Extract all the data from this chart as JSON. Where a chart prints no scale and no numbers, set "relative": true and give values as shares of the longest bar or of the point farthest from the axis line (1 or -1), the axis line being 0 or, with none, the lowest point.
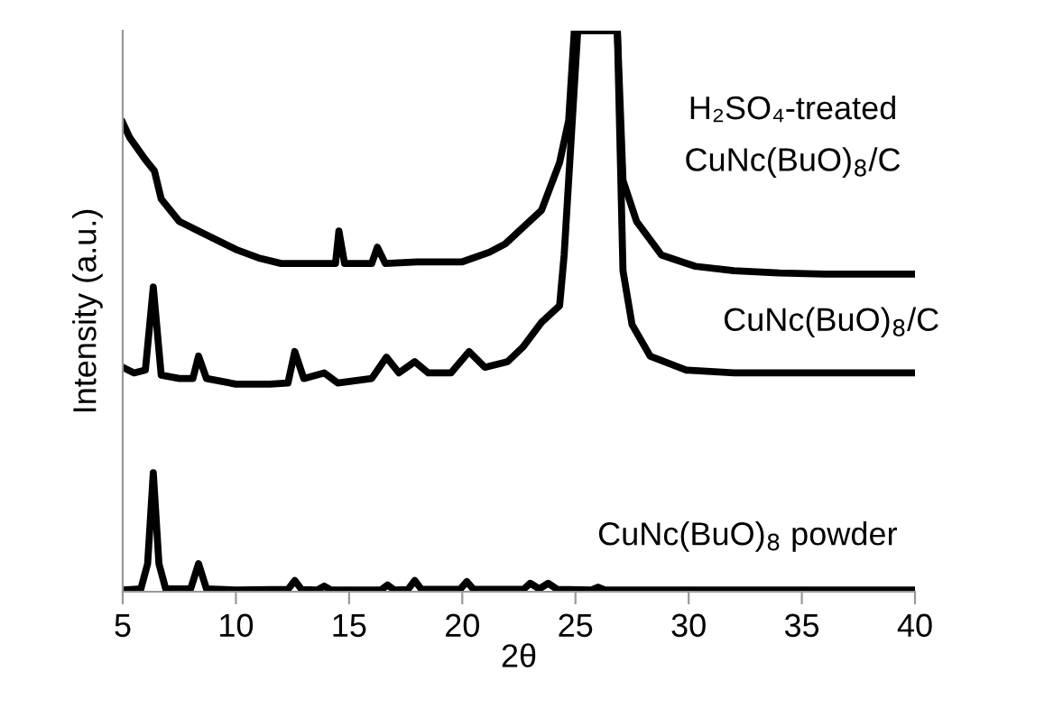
{
  "chart_data": {
    "type": "line",
    "relative": true,
    "xlabel": "2θ",
    "ylabel": "Intensity (a.u.)",
    "xlim": [
      5,
      40
    ],
    "xticks": [
      5,
      10,
      15,
      20,
      25,
      30,
      35,
      40
    ],
    "tick_labels": "x",
    "grid": false,
    "legend": false,
    "marker": "none",
    "line_style": "solid",
    "series": [
      {
        "name": "H₂SO₄-treated\nCuNc(BuO)$_{8}$/C",
        "color": "#000000",
        "x": [
          5,
          5.3,
          6.0,
          6.4,
          6.7,
          7.5,
          8.5,
          10,
          11,
          12,
          13,
          14.4,
          14.55,
          14.8,
          16.0,
          16.25,
          16.6,
          18,
          20,
          21.2,
          21.9,
          23.5,
          24.3,
          24.7,
          24.95,
          26.85,
          27.1,
          27.7,
          28.8,
          30.3,
          32,
          34,
          36,
          38,
          40
        ],
        "values": [
          0.836,
          0.81,
          0.77,
          0.75,
          0.7,
          0.66,
          0.64,
          0.61,
          0.595,
          0.585,
          0.585,
          0.585,
          0.643,
          0.585,
          0.585,
          0.614,
          0.585,
          0.588,
          0.588,
          0.605,
          0.62,
          0.68,
          0.765,
          0.84,
          1.0,
          1.0,
          0.733,
          0.66,
          0.6,
          0.58,
          0.572,
          0.568,
          0.566,
          0.566,
          0.566
        ]
      },
      {
        "name": "CuNc(BuO)$_{8}$/C",
        "color": "#000000",
        "x": [
          5,
          5.5,
          6.0,
          6.35,
          6.7,
          7.5,
          8.1,
          8.35,
          8.7,
          10,
          11.5,
          12.3,
          12.6,
          13,
          13.9,
          14.5,
          16,
          16.65,
          17.2,
          17.9,
          18.5,
          19.5,
          20.3,
          21,
          22,
          22.7,
          23.5,
          24.3,
          24.5,
          25.1,
          26.85,
          27.1,
          27.5,
          28.3,
          29.9,
          32,
          35,
          38,
          40
        ],
        "values": [
          0.4,
          0.39,
          0.395,
          0.543,
          0.386,
          0.38,
          0.38,
          0.42,
          0.38,
          0.37,
          0.37,
          0.372,
          0.428,
          0.38,
          0.39,
          0.372,
          0.38,
          0.418,
          0.39,
          0.41,
          0.39,
          0.39,
          0.428,
          0.4,
          0.41,
          0.437,
          0.48,
          0.51,
          0.6,
          1.0,
          1.0,
          0.572,
          0.476,
          0.42,
          0.395,
          0.39,
          0.39,
          0.39,
          0.39
        ]
      },
      {
        "name": "CuNc(BuO)$_{8}$ powder",
        "color": "#000000",
        "x": [
          5,
          5.8,
          6.1,
          6.35,
          6.6,
          6.9,
          8.0,
          8.35,
          8.7,
          10,
          12.3,
          12.6,
          12.9,
          13.6,
          13.9,
          14.2,
          16.4,
          16.7,
          17.0,
          17.6,
          17.9,
          18.2,
          19.9,
          20.2,
          20.5,
          22.7,
          23.0,
          23.4,
          23.8,
          24.2,
          25.7,
          26.0,
          26.3,
          30,
          35,
          40
        ],
        "values": [
          0.003,
          0.005,
          0.05,
          0.212,
          0.05,
          0.005,
          0.005,
          0.05,
          0.005,
          0.003,
          0.004,
          0.02,
          0.004,
          0.003,
          0.01,
          0.003,
          0.003,
          0.012,
          0.003,
          0.004,
          0.02,
          0.004,
          0.004,
          0.018,
          0.004,
          0.004,
          0.015,
          0.005,
          0.015,
          0.004,
          0.003,
          0.008,
          0.003,
          0.003,
          0.003,
          0.003
        ]
      }
    ]
  }
}
